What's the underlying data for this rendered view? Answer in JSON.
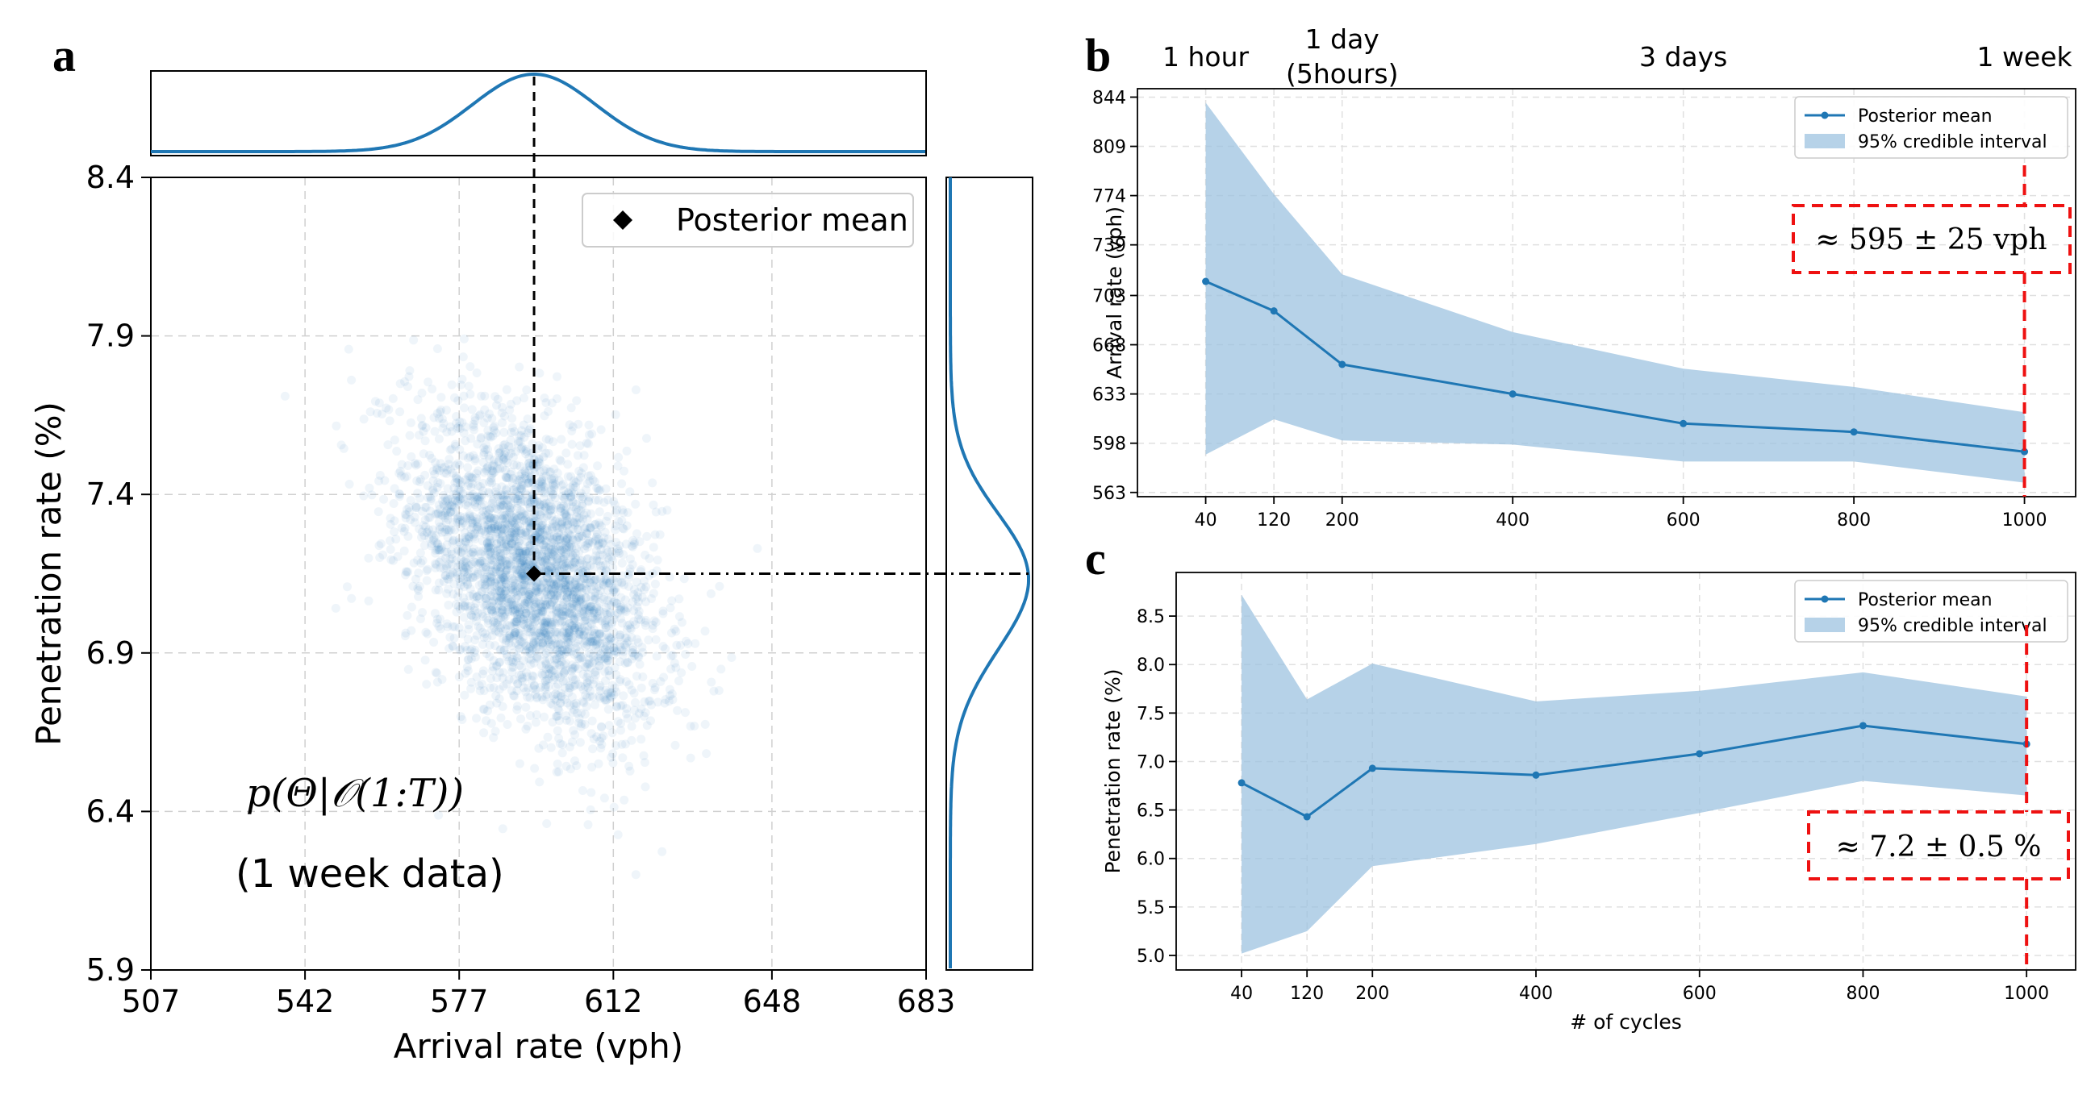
{
  "figure": {
    "colors": {
      "series": "#1f77b4",
      "band": "#9ec3e0",
      "scatter": "#1f77b4",
      "highlight": "#ee1111",
      "axes": "#000000",
      "grid": "#d0d0d0"
    }
  },
  "chart_data": [
    {
      "panel": "a",
      "type": "scatter",
      "xlabel": "Arrival rate (vph)",
      "ylabel": "Penetration rate (%)",
      "xlim": [
        507,
        683
      ],
      "ylim": [
        5.9,
        8.4
      ],
      "xticks": [
        "507",
        "542",
        "577",
        "612",
        "648",
        "683"
      ],
      "yticks": [
        "5.9",
        "6.4",
        "6.9",
        "7.4",
        "7.9",
        "8.4"
      ],
      "grid": true,
      "legend": {
        "position": "top-right",
        "entries": [
          "Posterior mean"
        ]
      },
      "posterior_mean": {
        "x": 594,
        "y": 7.15
      },
      "distribution": {
        "mean_x": 594,
        "mean_y": 7.15,
        "sd_x": 14,
        "sd_y": 0.25,
        "corr": -0.45,
        "n_points": 3200
      },
      "marginal_x": {
        "mean": 594,
        "sd": 14
      },
      "marginal_y": {
        "mean": 7.1,
        "sd": 0.22
      },
      "annotation_formula": "p(Θ|𝒪(1:T))",
      "annotation_note": "(1 week data)"
    },
    {
      "panel": "b",
      "type": "line",
      "xlabel": "",
      "ylabel": "Arrival rate (vph)",
      "xlim": [
        -40,
        1060
      ],
      "ylim": [
        560,
        850
      ],
      "x": [
        40,
        120,
        200,
        400,
        600,
        800,
        1000
      ],
      "xticks": [
        40,
        120,
        200,
        400,
        600,
        800,
        1000
      ],
      "yticks": [
        "563",
        "598",
        "633",
        "668",
        "703",
        "739",
        "774",
        "809",
        "844"
      ],
      "series": [
        {
          "name": "Posterior mean",
          "values": [
            713,
            692,
            654,
            633,
            612,
            606,
            592
          ]
        },
        {
          "name": "95% credible interval",
          "lower": [
            590,
            615,
            600,
            597,
            585,
            585,
            570
          ],
          "upper": [
            840,
            775,
            718,
            677,
            651,
            638,
            620
          ]
        }
      ],
      "grid": true,
      "legend": {
        "position": "top-right",
        "entries": [
          "Posterior mean",
          "95% credible interval"
        ]
      },
      "top_labels": [
        {
          "x": 40,
          "text": "1 hour"
        },
        {
          "x": 200,
          "line1": "1 day",
          "line2": "(5hours)"
        },
        {
          "x": 600,
          "text": "3 days"
        },
        {
          "x": 1000,
          "text": "1 week"
        }
      ],
      "callout": "≈ 595 ± 25 vph"
    },
    {
      "panel": "c",
      "type": "line",
      "xlabel": "# of cycles",
      "ylabel": "Penetration rate (%)",
      "xlim": [
        -40,
        1060
      ],
      "ylim": [
        4.85,
        8.95
      ],
      "x": [
        40,
        120,
        200,
        400,
        600,
        800,
        1000
      ],
      "xticks": [
        40,
        120,
        200,
        400,
        600,
        800,
        1000
      ],
      "yticks": [
        "5.0",
        "5.5",
        "6.0",
        "6.5",
        "7.0",
        "7.5",
        "8.0",
        "8.5"
      ],
      "series": [
        {
          "name": "Posterior mean",
          "values": [
            6.78,
            6.43,
            6.93,
            6.86,
            7.08,
            7.37,
            7.18
          ]
        },
        {
          "name": "95% credible interval",
          "lower": [
            5.02,
            5.25,
            5.92,
            6.15,
            6.47,
            6.8,
            6.65
          ],
          "upper": [
            8.72,
            7.64,
            8.01,
            7.62,
            7.73,
            7.92,
            7.67
          ]
        }
      ],
      "grid": true,
      "legend": {
        "position": "top-right",
        "entries": [
          "Posterior mean",
          "95% credible interval"
        ]
      },
      "callout": "≈ 7.2 ± 0.5 %"
    }
  ]
}
